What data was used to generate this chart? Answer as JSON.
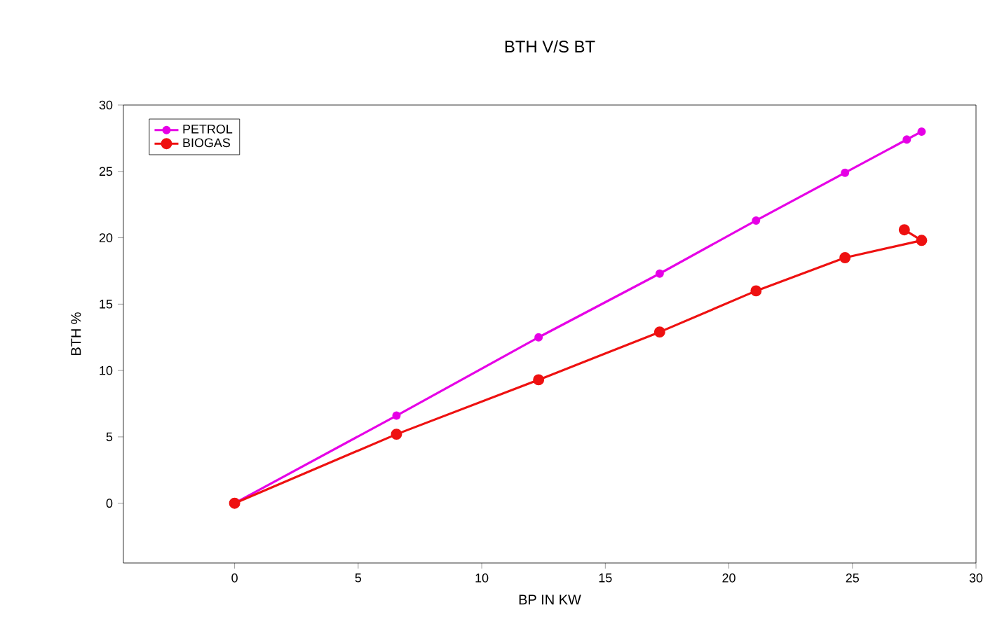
{
  "chart_data": {
    "type": "line",
    "title": "BTH V/S BT",
    "xlabel": "BP IN KW",
    "ylabel": "BTH %",
    "xlim": [
      -4.5,
      30
    ],
    "ylim": [
      -4.5,
      30
    ],
    "xticks": [
      0,
      5,
      10,
      15,
      20,
      25,
      30
    ],
    "yticks": [
      0,
      5,
      10,
      15,
      20,
      25,
      30
    ],
    "legend": "top left",
    "marker": "circle",
    "grid": false,
    "series": [
      {
        "name": "PETROL",
        "color": "#e600e6",
        "x": [
          0,
          6.55,
          12.3,
          17.2,
          21.1,
          24.7,
          27.2,
          27.8
        ],
        "values": [
          0,
          6.6,
          12.5,
          17.3,
          21.3,
          24.9,
          27.4,
          28.0
        ]
      },
      {
        "name": "BIOGAS",
        "color": "#ee1111",
        "x": [
          0,
          6.55,
          12.3,
          17.2,
          21.1,
          24.7,
          27.8,
          27.1
        ],
        "values": [
          0,
          5.2,
          9.3,
          12.9,
          16.0,
          18.5,
          19.8,
          20.6
        ]
      }
    ]
  }
}
